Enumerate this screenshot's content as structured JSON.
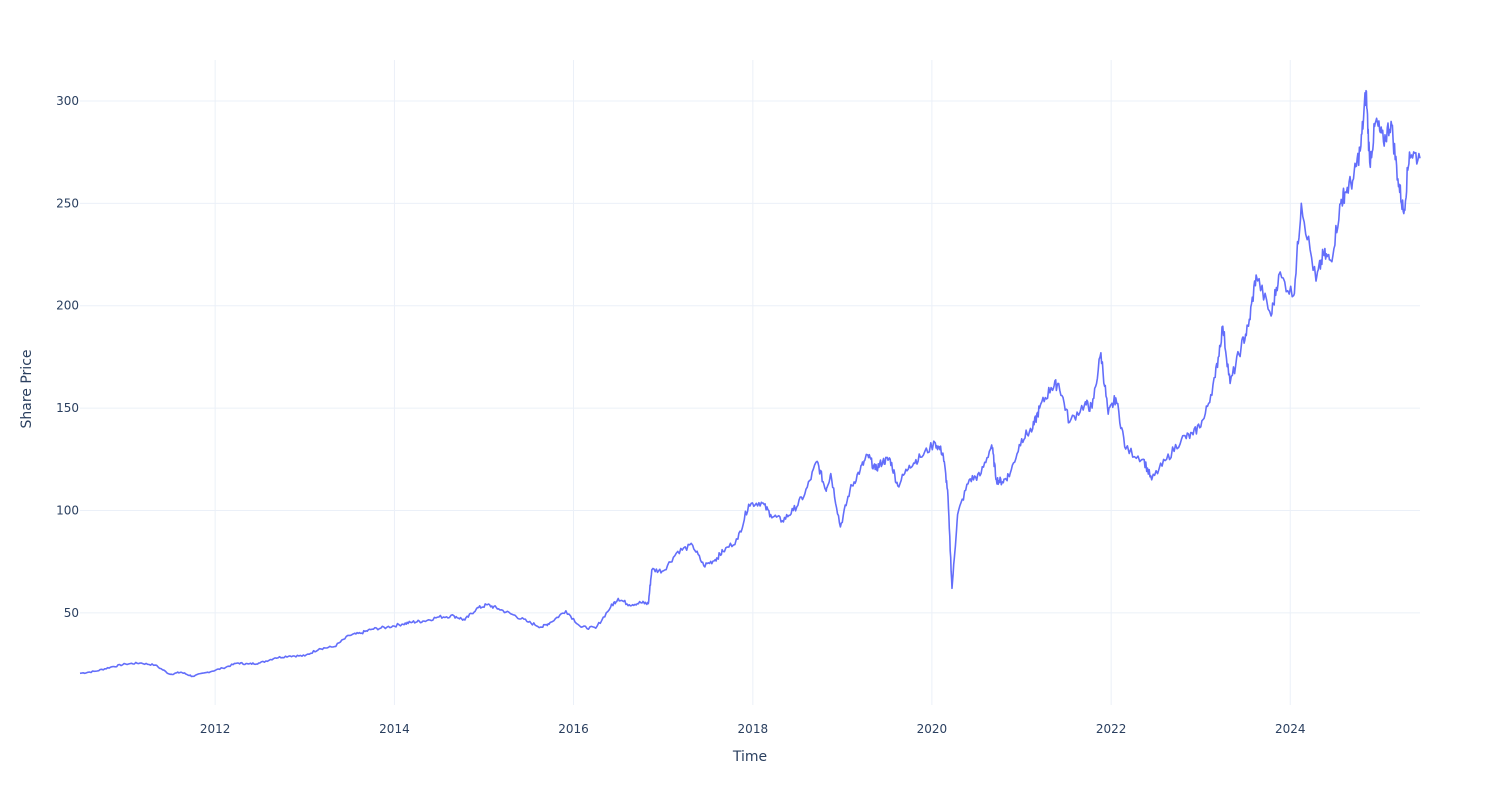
{
  "colors": {
    "series": "#636efa",
    "grid": "#ebf0f8",
    "text": "#2a3f5f",
    "background": "#ffffff"
  },
  "chart_data": {
    "type": "line",
    "title": "",
    "xlabel": "Time",
    "ylabel": "Share Price",
    "xlim": [
      "2010-06-29",
      "2025-06-13"
    ],
    "ylim": [
      5,
      320
    ],
    "x_ticks": [
      "2012",
      "2014",
      "2016",
      "2018",
      "2020",
      "2022",
      "2024"
    ],
    "y_ticks": [
      "50",
      "100",
      "150",
      "200",
      "250",
      "300"
    ],
    "grid": true,
    "legend": "none",
    "series": [
      {
        "color": "#636efa",
        "x": [
          "2010-06-29",
          "2010-09-01",
          "2010-11-01",
          "2011-01-01",
          "2011-03-01",
          "2011-05-01",
          "2011-07-01",
          "2011-08-15",
          "2011-10-01",
          "2011-12-01",
          "2012-02-01",
          "2012-04-01",
          "2012-05-15",
          "2012-07-01",
          "2012-09-01",
          "2012-11-01",
          "2013-01-01",
          "2013-03-01",
          "2013-05-01",
          "2013-07-01",
          "2013-08-15",
          "2013-10-01",
          "2013-12-01",
          "2014-02-01",
          "2014-03-15",
          "2014-05-01",
          "2014-07-01",
          "2014-09-01",
          "2014-10-15",
          "2014-12-01",
          "2015-01-15",
          "2015-03-01",
          "2015-05-01",
          "2015-07-01",
          "2015-08-25",
          "2015-10-01",
          "2015-12-01",
          "2016-02-01",
          "2016-04-01",
          "2016-06-01",
          "2016-07-01",
          "2016-08-15",
          "2016-10-01",
          "2016-11-01",
          "2016-11-15",
          "2017-01-01",
          "2017-03-01",
          "2017-05-01",
          "2017-06-15",
          "2017-08-01",
          "2017-09-01",
          "2017-11-01",
          "2017-12-15",
          "2018-02-05",
          "2018-03-15",
          "2018-05-01",
          "2018-06-15",
          "2018-08-01",
          "2018-09-20",
          "2018-10-25",
          "2018-11-15",
          "2018-12-24",
          "2019-02-01",
          "2019-03-15",
          "2019-04-15",
          "2019-05-15",
          "2019-06-15",
          "2019-07-15",
          "2019-08-15",
          "2019-10-01",
          "2019-11-15",
          "2020-01-15",
          "2020-02-15",
          "2020-03-05",
          "2020-03-23",
          "2020-04-15",
          "2020-06-01",
          "2020-07-15",
          "2020-09-01",
          "2020-09-20",
          "2020-10-15",
          "2020-11-15",
          "2021-01-01",
          "2021-02-15",
          "2021-03-15",
          "2021-05-01",
          "2021-06-01",
          "2021-07-15",
          "2021-09-15",
          "2021-10-15",
          "2021-11-20",
          "2021-12-20",
          "2022-01-20",
          "2022-03-01",
          "2022-05-12",
          "2022-06-15",
          "2022-08-15",
          "2022-10-15",
          "2022-12-01",
          "2023-01-15",
          "2023-03-01",
          "2023-04-01",
          "2023-05-01",
          "2023-06-15",
          "2023-07-15",
          "2023-08-15",
          "2023-10-15",
          "2023-11-15",
          "2024-01-15",
          "2024-02-15",
          "2024-04-15",
          "2024-05-15",
          "2024-06-15",
          "2024-07-25",
          "2024-08-10",
          "2024-09-15",
          "2024-10-15",
          "2024-11-05",
          "2024-11-20",
          "2024-12-15",
          "2025-01-15",
          "2025-02-15",
          "2025-03-15",
          "2025-04-08",
          "2025-05-01",
          "2025-06-13"
        ],
        "y": [
          20.5,
          21.5,
          23.5,
          25.0,
          25.5,
          24.5,
          20.0,
          21.0,
          19.0,
          21.0,
          23.0,
          25.5,
          25.0,
          25.5,
          28.0,
          29.0,
          29.0,
          32.5,
          33.5,
          39.0,
          40.0,
          42.0,
          43.0,
          44.5,
          45.5,
          46.0,
          48.0,
          48.5,
          46.5,
          52.0,
          54.0,
          52.0,
          49.0,
          45.5,
          43.0,
          45.5,
          51.0,
          43.0,
          42.5,
          53.0,
          57.0,
          54.0,
          55.0,
          54.5,
          71.0,
          70.5,
          80.0,
          83.0,
          73.0,
          76.0,
          80.0,
          86.0,
          103.0,
          104.0,
          98.0,
          95.0,
          100.0,
          108.0,
          124.0,
          110.0,
          118.0,
          92.0,
          110.0,
          120.0,
          127.0,
          120.0,
          124.0,
          125.0,
          112.0,
          122.0,
          126.0,
          133.0,
          128.0,
          110.0,
          62.0,
          98.0,
          115.0,
          117.0,
          132.0,
          115.0,
          114.0,
          118.0,
          135.0,
          140.0,
          150.0,
          160.0,
          162.0,
          143.0,
          152.0,
          150.0,
          177.0,
          147.0,
          155.0,
          130.0,
          125.0,
          115.0,
          125.0,
          135.0,
          137.0,
          145.0,
          165.0,
          190.0,
          162.0,
          180.0,
          190.0,
          215.0,
          195.0,
          215.0,
          205.0,
          250.0,
          212.0,
          225.0,
          222.0,
          250.0,
          255.0,
          262.0,
          278.0,
          305.0,
          270.0,
          290.0,
          280.0,
          290.0,
          262.0,
          245.0,
          275.0,
          272.0
        ]
      }
    ]
  }
}
